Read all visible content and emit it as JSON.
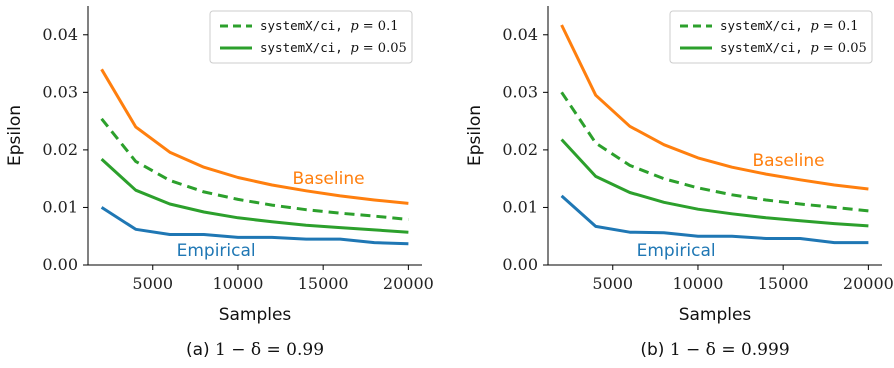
{
  "legend": {
    "dashed": {
      "code": "systemX/ci",
      "suffix": ", ",
      "param": "p",
      "equals": " = 0.1"
    },
    "solid": {
      "code": "systemX/ci",
      "suffix": ", ",
      "param": "p",
      "equals": " = 0.05"
    }
  },
  "colors": {
    "baseline": "#ff7f0e",
    "empirical": "#1f77b4",
    "systemx": "#2ca02c"
  },
  "chart_data": [
    {
      "type": "line",
      "caption_prefix": "(a)",
      "caption_math": "1 − δ = 0.99",
      "xlabel": "Samples",
      "ylabel": "Epsilon",
      "xlim": [
        1200,
        20800
      ],
      "ylim": [
        0,
        0.045
      ],
      "xticks": [
        5000,
        10000,
        15000,
        20000
      ],
      "yticks": [
        0.0,
        0.01,
        0.02,
        0.03,
        0.04
      ],
      "ytick_labels": [
        "0.00",
        "0.01",
        "0.02",
        "0.03",
        "0.04"
      ],
      "grid": false,
      "legend_position": "top-right",
      "annotations": {
        "baseline": "Baseline",
        "empirical": "Empirical"
      },
      "series": [
        {
          "name": "Baseline",
          "color": "#ff7f0e",
          "dash": false,
          "x": [
            2000,
            4000,
            6000,
            8000,
            10000,
            12000,
            14000,
            16000,
            18000,
            20000
          ],
          "y": [
            0.034,
            0.024,
            0.0196,
            0.017,
            0.0152,
            0.0139,
            0.0129,
            0.012,
            0.0113,
            0.0107
          ]
        },
        {
          "name": "systemX/ci, p = 0.1",
          "color": "#2ca02c",
          "dash": true,
          "x": [
            2000,
            4000,
            6000,
            8000,
            10000,
            12000,
            14000,
            16000,
            18000,
            20000
          ],
          "y": [
            0.0254,
            0.018,
            0.0147,
            0.0127,
            0.0114,
            0.0104,
            0.0096,
            0.009,
            0.0085,
            0.0079
          ]
        },
        {
          "name": "systemX/ci, p = 0.05",
          "color": "#2ca02c",
          "dash": false,
          "x": [
            2000,
            4000,
            6000,
            8000,
            10000,
            12000,
            14000,
            16000,
            18000,
            20000
          ],
          "y": [
            0.0184,
            0.013,
            0.0106,
            0.0092,
            0.0082,
            0.0075,
            0.0069,
            0.0065,
            0.0061,
            0.0057
          ]
        },
        {
          "name": "Empirical",
          "color": "#1f77b4",
          "dash": false,
          "x": [
            2000,
            4000,
            6000,
            8000,
            10000,
            12000,
            14000,
            16000,
            18000,
            20000
          ],
          "y": [
            0.01,
            0.0062,
            0.0053,
            0.0053,
            0.0048,
            0.0048,
            0.0045,
            0.0045,
            0.0039,
            0.0037
          ]
        }
      ]
    },
    {
      "type": "line",
      "caption_prefix": "(b)",
      "caption_math": "1 − δ = 0.999",
      "xlabel": "Samples",
      "ylabel": "Epsilon",
      "xlim": [
        1200,
        20800
      ],
      "ylim": [
        0,
        0.045
      ],
      "xticks": [
        5000,
        10000,
        15000,
        20000
      ],
      "yticks": [
        0.0,
        0.01,
        0.02,
        0.03,
        0.04
      ],
      "ytick_labels": [
        "0.00",
        "0.01",
        "0.02",
        "0.03",
        "0.04"
      ],
      "grid": false,
      "legend_position": "top-right",
      "annotations": {
        "baseline": "Baseline",
        "empirical": "Empirical"
      },
      "series": [
        {
          "name": "Baseline",
          "color": "#ff7f0e",
          "dash": false,
          "x": [
            2000,
            4000,
            6000,
            8000,
            10000,
            12000,
            14000,
            16000,
            18000,
            20000
          ],
          "y": [
            0.0417,
            0.0295,
            0.0241,
            0.0209,
            0.0186,
            0.017,
            0.0158,
            0.0148,
            0.0139,
            0.0132
          ]
        },
        {
          "name": "systemX/ci, p = 0.1",
          "color": "#2ca02c",
          "dash": true,
          "x": [
            2000,
            4000,
            6000,
            8000,
            10000,
            12000,
            14000,
            16000,
            18000,
            20000
          ],
          "y": [
            0.03,
            0.0212,
            0.0173,
            0.015,
            0.0134,
            0.0122,
            0.0113,
            0.0106,
            0.01,
            0.0094
          ]
        },
        {
          "name": "systemX/ci, p = 0.05",
          "color": "#2ca02c",
          "dash": false,
          "x": [
            2000,
            4000,
            6000,
            8000,
            10000,
            12000,
            14000,
            16000,
            18000,
            20000
          ],
          "y": [
            0.0218,
            0.0154,
            0.0126,
            0.0109,
            0.0097,
            0.0089,
            0.0082,
            0.0077,
            0.0072,
            0.0068
          ]
        },
        {
          "name": "Empirical",
          "color": "#1f77b4",
          "dash": false,
          "x": [
            2000,
            4000,
            6000,
            8000,
            10000,
            12000,
            14000,
            16000,
            18000,
            20000
          ],
          "y": [
            0.012,
            0.0067,
            0.0057,
            0.0056,
            0.005,
            0.005,
            0.0046,
            0.0046,
            0.0039,
            0.0039
          ]
        }
      ]
    }
  ]
}
